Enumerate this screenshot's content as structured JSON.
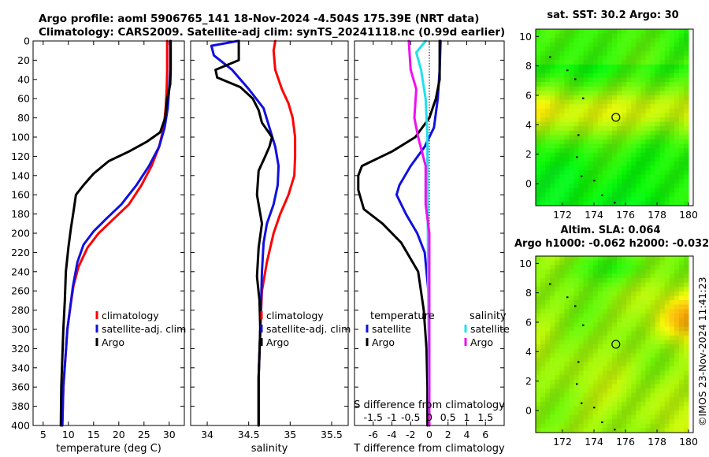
{
  "header": {
    "line1": "Argo profile: aoml 5906765_141 18-Nov-2024 -4.504S 175.39E (NRT data)",
    "line2": "Climatology: CARS2009. Satellite-adj clim: synTS_20241118.nc (0.99d earlier)"
  },
  "side_stamp": "©IMOS 23-Nov-2024 11:41:23",
  "colors": {
    "climatology": "#ff0000",
    "satellite": "#1010e0",
    "argo": "#000000",
    "sat_salinity": "#22e0ee",
    "argo_salinity": "#ee10ee"
  },
  "chart_data": [
    {
      "type": "line",
      "name": "temperature-profile",
      "xlabel": "temperature (deg C)",
      "ylabel": "depth",
      "xlim": [
        3,
        33
      ],
      "ylim": [
        0,
        400
      ],
      "xticks": [
        5,
        10,
        15,
        20,
        25,
        30
      ],
      "yticks": [
        0,
        20,
        40,
        60,
        80,
        100,
        120,
        140,
        160,
        180,
        200,
        220,
        240,
        260,
        280,
        300,
        320,
        340,
        360,
        380,
        400
      ],
      "legend": [
        "climatology",
        "satellite-adj. clim",
        "Argo"
      ],
      "series": [
        {
          "name": "climatology",
          "color": "#ff0000",
          "points": [
            [
              29.6,
              0
            ],
            [
              29.6,
              30
            ],
            [
              29.5,
              50
            ],
            [
              29.3,
              70
            ],
            [
              28.9,
              90
            ],
            [
              28,
              110
            ],
            [
              26.5,
              130
            ],
            [
              24.5,
              150
            ],
            [
              22,
              170
            ],
            [
              19,
              185
            ],
            [
              16,
              200
            ],
            [
              13.8,
              215
            ],
            [
              12,
              235
            ],
            [
              11,
              255
            ],
            [
              10.3,
              280
            ],
            [
              9.8,
              300
            ],
            [
              9.4,
              330
            ],
            [
              9,
              360
            ],
            [
              8.8,
              400
            ]
          ]
        },
        {
          "name": "satellite-adj. clim",
          "color": "#1010e0",
          "points": [
            [
              30.2,
              0
            ],
            [
              30.2,
              30
            ],
            [
              30,
              50
            ],
            [
              29.7,
              70
            ],
            [
              29.1,
              90
            ],
            [
              28,
              110
            ],
            [
              26,
              130
            ],
            [
              23.5,
              150
            ],
            [
              20.5,
              170
            ],
            [
              17.5,
              185
            ],
            [
              15,
              198
            ],
            [
              13,
              212
            ],
            [
              11.8,
              230
            ],
            [
              10.9,
              255
            ],
            [
              10.3,
              280
            ],
            [
              9.8,
              300
            ],
            [
              9.4,
              330
            ],
            [
              9,
              360
            ],
            [
              8.8,
              400
            ]
          ]
        },
        {
          "name": "Argo",
          "color": "#000000",
          "points": [
            [
              30.3,
              0
            ],
            [
              30.3,
              30
            ],
            [
              30.2,
              45
            ],
            [
              29.6,
              60
            ],
            [
              29.2,
              80
            ],
            [
              28.2,
              95
            ],
            [
              25.5,
              105
            ],
            [
              22,
              115
            ],
            [
              18,
              125
            ],
            [
              15,
              138
            ],
            [
              13,
              150
            ],
            [
              11.5,
              160
            ],
            [
              11,
              178
            ],
            [
              10.5,
              195
            ],
            [
              10,
              215
            ],
            [
              9.5,
              240
            ],
            [
              9.3,
              270
            ],
            [
              9,
              300
            ],
            [
              8.8,
              330
            ],
            [
              8.6,
              360
            ],
            [
              8.5,
              400
            ]
          ]
        }
      ]
    },
    {
      "type": "line",
      "name": "salinity-profile",
      "xlabel": "salinity",
      "xlim": [
        33.8,
        35.7
      ],
      "ylim": [
        0,
        400
      ],
      "xticks": [
        34,
        34.5,
        35,
        35.5
      ],
      "yticks": [
        0,
        20,
        40,
        60,
        80,
        100,
        120,
        140,
        160,
        180,
        200,
        220,
        240,
        260,
        280,
        300,
        320,
        340,
        360,
        380,
        400
      ],
      "legend": [
        "climatology",
        "satellite-adj. clim",
        "Argo"
      ],
      "series": [
        {
          "name": "climatology",
          "color": "#ff0000",
          "points": [
            [
              34.82,
              0
            ],
            [
              34.8,
              10
            ],
            [
              34.82,
              30
            ],
            [
              34.9,
              50
            ],
            [
              34.98,
              65
            ],
            [
              35.03,
              80
            ],
            [
              35.06,
              100
            ],
            [
              35.06,
              120
            ],
            [
              35.05,
              140
            ],
            [
              34.98,
              160
            ],
            [
              34.88,
              180
            ],
            [
              34.8,
              200
            ],
            [
              34.72,
              230
            ],
            [
              34.66,
              260
            ],
            [
              34.64,
              300
            ],
            [
              34.62,
              350
            ],
            [
              34.62,
              400
            ]
          ]
        },
        {
          "name": "satellite-adj. clim",
          "color": "#1010e0",
          "points": [
            [
              34.37,
              0
            ],
            [
              34.05,
              5
            ],
            [
              34.08,
              15
            ],
            [
              34.3,
              30
            ],
            [
              34.5,
              50
            ],
            [
              34.68,
              70
            ],
            [
              34.75,
              90
            ],
            [
              34.82,
              110
            ],
            [
              34.86,
              130
            ],
            [
              34.85,
              150
            ],
            [
              34.8,
              170
            ],
            [
              34.72,
              190
            ],
            [
              34.68,
              210
            ],
            [
              34.66,
              240
            ],
            [
              34.65,
              270
            ],
            [
              34.64,
              300
            ],
            [
              34.62,
              350
            ],
            [
              34.62,
              400
            ]
          ]
        },
        {
          "name": "Argo",
          "color": "#000000",
          "points": [
            [
              34.38,
              0
            ],
            [
              34.38,
              20
            ],
            [
              34.1,
              30
            ],
            [
              34.12,
              38
            ],
            [
              34.4,
              48
            ],
            [
              34.55,
              60
            ],
            [
              34.62,
              72
            ],
            [
              34.66,
              85
            ],
            [
              34.78,
              100
            ],
            [
              34.75,
              110
            ],
            [
              34.7,
              120
            ],
            [
              34.62,
              135
            ],
            [
              34.6,
              160
            ],
            [
              34.66,
              190
            ],
            [
              34.62,
              215
            ],
            [
              34.6,
              245
            ],
            [
              34.63,
              270
            ],
            [
              34.64,
              300
            ],
            [
              34.62,
              350
            ],
            [
              34.62,
              400
            ]
          ]
        }
      ]
    },
    {
      "type": "line",
      "name": "difference-profile",
      "xlabel": "T difference from climatology",
      "top_axis_label": "S difference from climatology",
      "xlim": [
        -8,
        8
      ],
      "ylim": [
        0,
        400
      ],
      "xticks": [
        -6,
        -4,
        -2,
        0,
        2,
        4,
        6
      ],
      "top_xticks": [
        -1.5,
        -1,
        -0.5,
        0,
        0.5,
        1,
        1.5
      ],
      "yticks": [
        0,
        20,
        40,
        60,
        80,
        100,
        120,
        140,
        160,
        180,
        200,
        220,
        240,
        260,
        280,
        300,
        320,
        340,
        360,
        380,
        400
      ],
      "legend_temperature_title": "temperature",
      "legend_salinity_title": "salinity",
      "legend": [
        "satellite",
        "Argo",
        "satellite",
        "Argo"
      ],
      "series": [
        {
          "name": "temperature satellite",
          "color": "#1010e0",
          "points": [
            [
              1.2,
              0
            ],
            [
              1.1,
              30
            ],
            [
              0.9,
              60
            ],
            [
              0.5,
              90
            ],
            [
              -0.5,
              110
            ],
            [
              -2,
              130
            ],
            [
              -3.2,
              150
            ],
            [
              -3.5,
              160
            ],
            [
              -2.5,
              180
            ],
            [
              -1.3,
              200
            ],
            [
              -0.5,
              220
            ],
            [
              -0.1,
              260
            ],
            [
              0,
              300
            ],
            [
              0,
              400
            ]
          ]
        },
        {
          "name": "temperature Argo",
          "color": "#000000",
          "points": [
            [
              1.1,
              0
            ],
            [
              1.1,
              40
            ],
            [
              0.7,
              60
            ],
            [
              0,
              80
            ],
            [
              -1.5,
              100
            ],
            [
              -4,
              115
            ],
            [
              -7.2,
              130
            ],
            [
              -7.6,
              140
            ],
            [
              -7.6,
              155
            ],
            [
              -7,
              175
            ],
            [
              -5,
              190
            ],
            [
              -3,
              210
            ],
            [
              -1.2,
              240
            ],
            [
              -0.6,
              280
            ],
            [
              -0.3,
              320
            ],
            [
              -0.2,
              360
            ],
            [
              -0.2,
              400
            ]
          ]
        },
        {
          "name": "salinity satellite",
          "color": "#22e0ee",
          "points": [
            [
              -0.1,
              0
            ],
            [
              -0.35,
              12
            ],
            [
              -0.22,
              30
            ],
            [
              -0.1,
              60
            ],
            [
              -0.05,
              100
            ],
            [
              -0.05,
              150
            ],
            [
              -0.04,
              200
            ],
            [
              -0.02,
              300
            ],
            [
              0,
              400
            ]
          ]
        },
        {
          "name": "salinity Argo",
          "color": "#ee10ee",
          "points": [
            [
              -0.55,
              0
            ],
            [
              -0.5,
              30
            ],
            [
              -0.35,
              50
            ],
            [
              -0.4,
              80
            ],
            [
              -0.3,
              100
            ],
            [
              -0.1,
              130
            ],
            [
              -0.1,
              170
            ],
            [
              0,
              200
            ],
            [
              0,
              300
            ],
            [
              0,
              400
            ]
          ]
        }
      ]
    },
    {
      "type": "heatmap",
      "name": "sst-map",
      "title": "sat. SST: 30.2 Argo: 30",
      "xticks": [
        172,
        174,
        176,
        178,
        180
      ],
      "yticks": [
        0,
        2,
        4,
        6,
        8,
        10
      ],
      "xlim": [
        170.3,
        180.3
      ],
      "ylim": [
        -1.5,
        10.5
      ],
      "marker": [
        175.39,
        4.504
      ]
    },
    {
      "type": "heatmap",
      "name": "sla-map",
      "title": "Altim. SLA: 0.064",
      "subtitle": "Argo h1000: -0.062 h2000: -0.032",
      "xticks": [
        172,
        174,
        176,
        178,
        180
      ],
      "yticks": [
        0,
        2,
        4,
        6,
        8,
        10
      ],
      "xlim": [
        170.3,
        180.3
      ],
      "ylim": [
        -1.5,
        10.5
      ],
      "marker": [
        175.39,
        4.504
      ]
    }
  ]
}
